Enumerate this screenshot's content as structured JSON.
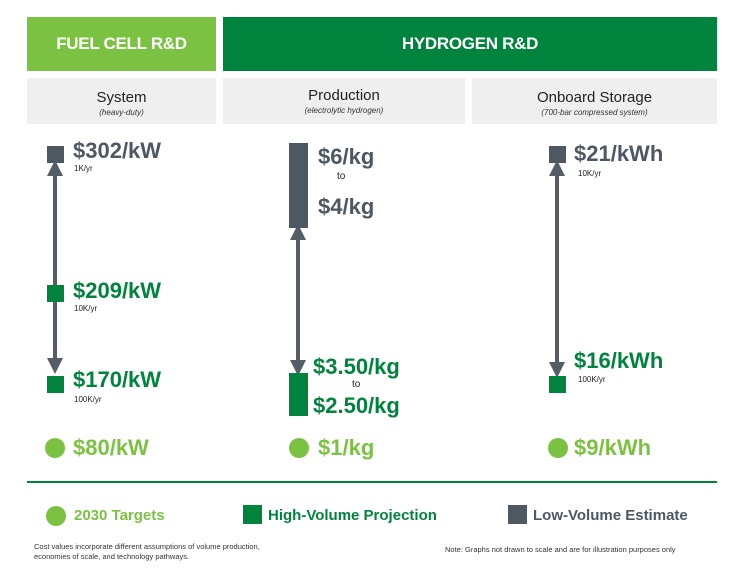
{
  "colors": {
    "target_green": "#7cc242",
    "high_volume_green": "#00843d",
    "low_volume_gray": "#4d5863",
    "header_fuel_cell": "#7cc242",
    "header_hydrogen": "#00843d",
    "arrow_gray": "#555e66"
  },
  "headers": {
    "fuel_cell": "FUEL CELL R&D",
    "hydrogen": "HYDROGEN R&D"
  },
  "columns": {
    "system": {
      "title": "System",
      "subtitle": "(heavy-duty)"
    },
    "production": {
      "title": "Production",
      "subtitle": "(electrolytic  hydrogen)"
    },
    "storage": {
      "title": "Onboard Storage",
      "subtitle": "(700-bar compressed system)"
    }
  },
  "chart_data": [
    {
      "type": "cost-range",
      "category": "System (heavy-duty)",
      "unit": "$/kW",
      "low_volume_estimate": {
        "value": 302,
        "label": "$302/kW",
        "volume": "1K/yr"
      },
      "high_volume_projections": [
        {
          "value": 209,
          "label": "$209/kW",
          "volume": "10K/yr"
        },
        {
          "value": 170,
          "label": "$170/kW",
          "volume": "100K/yr"
        }
      ],
      "target_2030": {
        "value": 80,
        "label": "$80/kW"
      }
    },
    {
      "type": "cost-range",
      "category": "Production (electrolytic hydrogen)",
      "unit": "$/kg",
      "low_volume_estimate": {
        "range": [
          4,
          6
        ],
        "label_high": "$6/kg",
        "label_low": "$4/kg"
      },
      "high_volume_projection": {
        "range": [
          2.5,
          3.5
        ],
        "label_high": "$3.50/kg",
        "label_low": "$2.50/kg"
      },
      "range_connector": "to",
      "target_2030": {
        "value": 1,
        "label": "$1/kg"
      }
    },
    {
      "type": "cost-range",
      "category": "Onboard Storage (700-bar compressed system)",
      "unit": "$/kWh",
      "low_volume_estimate": {
        "value": 21,
        "label": "$21/kWh",
        "volume": "10K/yr"
      },
      "high_volume_projection": {
        "value": 16,
        "label": "$16/kWh",
        "volume": "100K/yr"
      },
      "target_2030": {
        "value": 9,
        "label": "$9/kWh"
      }
    }
  ],
  "legend": {
    "targets": "2030 Targets",
    "high_volume": "High-Volume Projection",
    "low_volume": "Low-Volume Estimate"
  },
  "footnotes": {
    "left_line1": "Cost values incorporate different assumptions of volume production,",
    "left_line2": "economies of scale, and technology pathways.",
    "right": "Note: Graphs not drawn to scale and are for illustration purposes only"
  }
}
